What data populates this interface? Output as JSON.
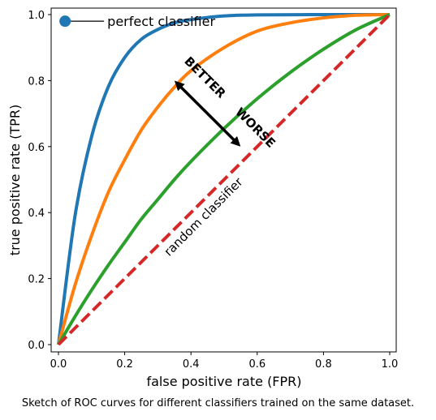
{
  "chart_data": {
    "type": "line",
    "xlabel": "false positive rate (FPR)",
    "ylabel": "true  positive rate (TPR)",
    "xlim": [
      0.0,
      1.0
    ],
    "ylim": [
      0.0,
      1.0
    ],
    "x_ticks": [
      "0.0",
      "0.2",
      "0.4",
      "0.6",
      "0.8",
      "1.0"
    ],
    "y_ticks": [
      "0.0",
      "0.2",
      "0.4",
      "0.6",
      "0.8",
      "1.0"
    ],
    "grid": false,
    "series": [
      {
        "color": "#1f77b4",
        "style": "solid",
        "points": [
          [
            0,
            0
          ],
          [
            0.05,
            0.39
          ],
          [
            0.1,
            0.63
          ],
          [
            0.15,
            0.78
          ],
          [
            0.2,
            0.87
          ],
          [
            0.25,
            0.925
          ],
          [
            0.3,
            0.955
          ],
          [
            0.35,
            0.975
          ],
          [
            0.4,
            0.985
          ],
          [
            0.5,
            0.996
          ],
          [
            0.6,
            0.999
          ],
          [
            0.8,
            1.0
          ],
          [
            1.0,
            1.0
          ]
        ]
      },
      {
        "color": "#ff7f0e",
        "style": "solid",
        "points": [
          [
            0,
            0
          ],
          [
            0.05,
            0.18
          ],
          [
            0.1,
            0.33
          ],
          [
            0.15,
            0.46
          ],
          [
            0.2,
            0.56
          ],
          [
            0.25,
            0.65
          ],
          [
            0.3,
            0.72
          ],
          [
            0.35,
            0.78
          ],
          [
            0.4,
            0.83
          ],
          [
            0.5,
            0.9
          ],
          [
            0.6,
            0.95
          ],
          [
            0.7,
            0.975
          ],
          [
            0.8,
            0.99
          ],
          [
            0.9,
            0.998
          ],
          [
            1.0,
            1.0
          ]
        ]
      },
      {
        "color": "#2ca02c",
        "style": "solid",
        "points": [
          [
            0,
            0
          ],
          [
            0.05,
            0.085
          ],
          [
            0.1,
            0.165
          ],
          [
            0.15,
            0.24
          ],
          [
            0.2,
            0.31
          ],
          [
            0.25,
            0.38
          ],
          [
            0.3,
            0.44
          ],
          [
            0.35,
            0.5
          ],
          [
            0.4,
            0.555
          ],
          [
            0.5,
            0.655
          ],
          [
            0.6,
            0.745
          ],
          [
            0.7,
            0.825
          ],
          [
            0.8,
            0.895
          ],
          [
            0.9,
            0.955
          ],
          [
            1.0,
            1.0
          ]
        ]
      },
      {
        "color": "#d62728",
        "style": "dashed",
        "points": [
          [
            0,
            0
          ],
          [
            1.0,
            1.0
          ]
        ]
      }
    ],
    "perfect_point": {
      "x": 0.02,
      "y": 0.98,
      "color": "#1f77b4"
    },
    "annotations": {
      "perfect": "perfect classifier",
      "random": "random classifier",
      "better": "BETTER",
      "worse": "WORSE"
    },
    "arrow": {
      "from": [
        0.36,
        0.79
      ],
      "to": [
        0.54,
        0.61
      ]
    }
  },
  "caption": "Sketch of ROC curves for different classifiers trained on the same dataset."
}
